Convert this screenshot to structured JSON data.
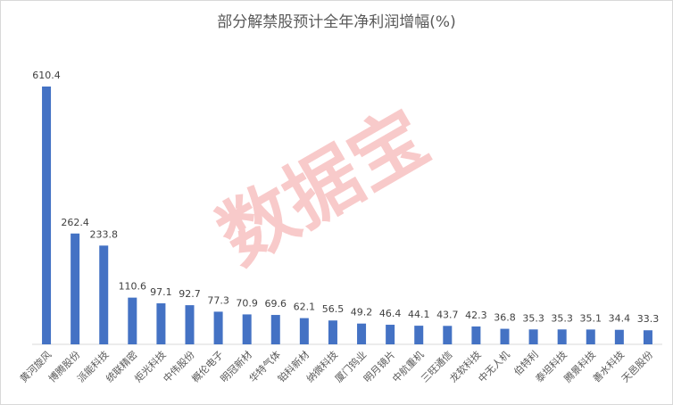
{
  "chart_data": {
    "type": "bar",
    "title": "部分解禁股预计全年净利润增幅(%)",
    "watermark": "数据宝",
    "categories": [
      "黄河旋风",
      "博腾股份",
      "派能科技",
      "统联精密",
      "炬光科技",
      "中伟股份",
      "概伦电子",
      "明冠新材",
      "华特气体",
      "铂科新材",
      "纳微科技",
      "厦门钨业",
      "明月镜片",
      "中航重机",
      "三旺通信",
      "龙软科技",
      "中无人机",
      "伯特利",
      "泰坦科技",
      "腾景科技",
      "善水科技",
      "天邑股份"
    ],
    "values": [
      610.4,
      262.4,
      233.8,
      110.6,
      97.1,
      92.7,
      77.3,
      70.9,
      69.6,
      62.1,
      56.5,
      49.2,
      46.4,
      44.1,
      43.7,
      42.3,
      36.8,
      35.3,
      35.3,
      35.1,
      34.4,
      33.3
    ],
    "color": "#4472c4"
  }
}
